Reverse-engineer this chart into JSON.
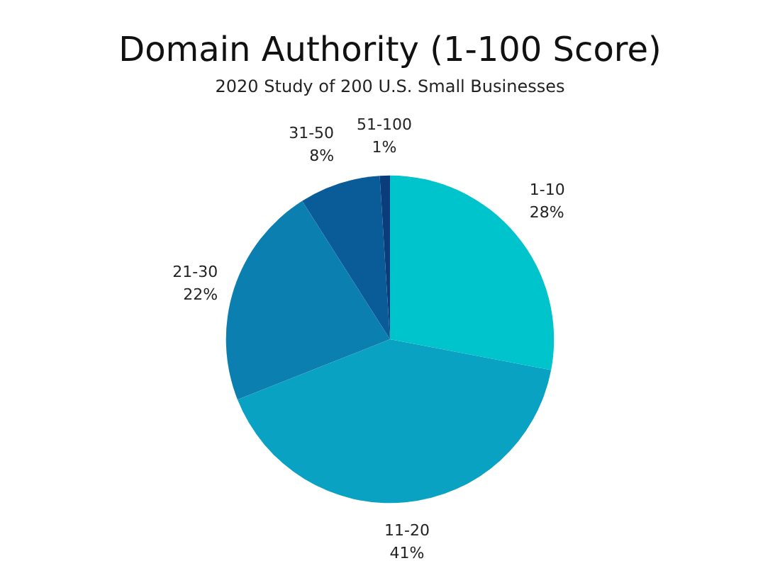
{
  "chart_data": {
    "type": "pie",
    "title": "Domain Authority (1-100 Score)",
    "subtitle": "2020 Study of 200 U.S. Small Businesses",
    "categories": [
      "1-10",
      "11-20",
      "21-30",
      "31-50",
      "51-100"
    ],
    "values": [
      28,
      41,
      22,
      8,
      1
    ],
    "value_labels": [
      "28%",
      "41%",
      "22%",
      "8%",
      "1%"
    ],
    "colors": [
      "#00c4cc",
      "#0aa2c2",
      "#0b80b0",
      "#0a5c98",
      "#0b3d7c"
    ],
    "legend": false
  }
}
